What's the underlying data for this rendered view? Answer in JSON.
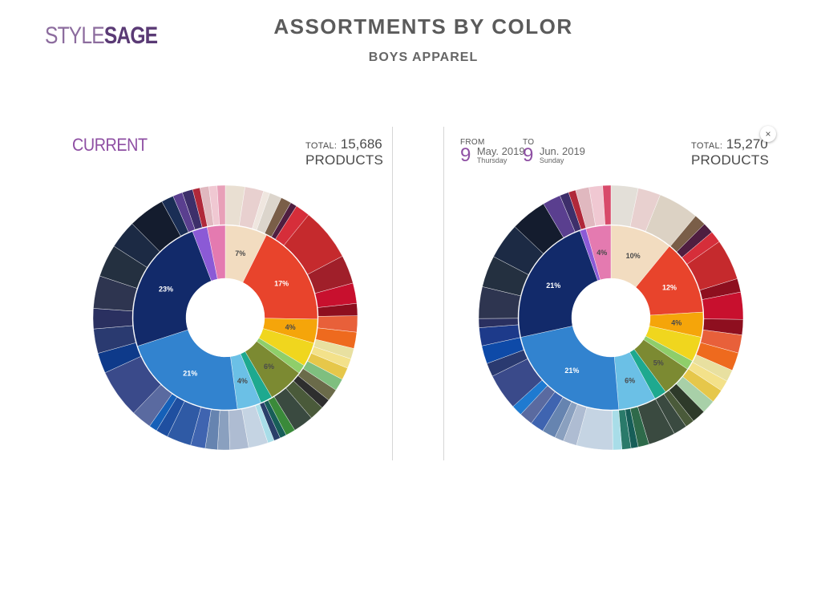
{
  "header": {
    "logo_style": "STYLE",
    "logo_sage": "SAGE",
    "title": "ASSORTMENTS BY COLOR",
    "subtitle": "BOYS APPAREL"
  },
  "left_panel": {
    "label": "CURRENT",
    "total_label": "TOTAL:",
    "total_value": "15,686",
    "total_unit": "PRODUCTS"
  },
  "right_panel": {
    "from_label": "FROM",
    "from_day": "9",
    "from_month": "May. 2019",
    "from_weekday": "Thursday",
    "to_label": "TO",
    "to_day": "9",
    "to_month": "Jun. 2019",
    "to_weekday": "Sunday",
    "total_label": "TOTAL:",
    "total_value": "15,270",
    "total_unit": "PRODUCTS",
    "close_label": "×"
  },
  "chart_data": [
    {
      "type": "sunburst",
      "title": "CURRENT",
      "total": 15686,
      "inner": [
        {
          "value": 7,
          "label": "7%",
          "color": "#f2dcc0"
        },
        {
          "value": 17,
          "label": "17%",
          "color": "#e8442c"
        },
        {
          "value": 4,
          "label": "4%",
          "color": "#f5a50a"
        },
        {
          "value": 4,
          "label": "",
          "color": "#f0d61e"
        },
        {
          "value": 1.5,
          "label": "",
          "color": "#8fce6a"
        },
        {
          "value": 6,
          "label": "6%",
          "color": "#7c8a32"
        },
        {
          "value": 2,
          "label": "",
          "color": "#1ea98f"
        },
        {
          "value": 4,
          "label": "4%",
          "color": "#6bc0e6"
        },
        {
          "value": 21,
          "label": "21%",
          "color": "#3283cf"
        },
        {
          "value": 23,
          "label": "23%",
          "color": "#122a6a"
        },
        {
          "value": 2.5,
          "label": "",
          "color": "#8b5ad6"
        },
        {
          "value": 3,
          "label": "",
          "color": "#e47ab0"
        }
      ],
      "outer": [
        {
          "value": 2.4,
          "color": "#e9dfd2"
        },
        {
          "value": 2.3,
          "color": "#e8d0cf"
        },
        {
          "value": 0.8,
          "color": "#efe6df"
        },
        {
          "value": 1.5,
          "color": "#dcd5cc"
        },
        {
          "value": 1.3,
          "color": "#7a5e48"
        },
        {
          "value": 0.8,
          "color": "#4f1e40"
        },
        {
          "value": 1.8,
          "color": "#d62e3a"
        },
        {
          "value": 6.5,
          "color": "#c52a2d"
        },
        {
          "value": 3.5,
          "color": "#a01f2a"
        },
        {
          "value": 2.5,
          "color": "#c8102e"
        },
        {
          "value": 1.5,
          "color": "#8e0f1f"
        },
        {
          "value": 2.0,
          "color": "#e8603a"
        },
        {
          "value": 2.0,
          "color": "#ee6a1e"
        },
        {
          "value": 1.3,
          "color": "#e8e0a0"
        },
        {
          "value": 1.2,
          "color": "#f3e18a"
        },
        {
          "value": 1.5,
          "color": "#e6c74a"
        },
        {
          "value": 1.5,
          "color": "#7fbf7f"
        },
        {
          "value": 1.5,
          "color": "#6b6b4a"
        },
        {
          "value": 1.2,
          "color": "#2e2e2e"
        },
        {
          "value": 1.8,
          "color": "#4a5a3a"
        },
        {
          "value": 2.5,
          "color": "#3a4a40"
        },
        {
          "value": 1.2,
          "color": "#3a8a3a"
        },
        {
          "value": 0.8,
          "color": "#175e58"
        },
        {
          "value": 0.8,
          "color": "#2a3f6a"
        },
        {
          "value": 0.8,
          "color": "#a8dde8"
        },
        {
          "value": 2.4,
          "color": "#c5d4e3"
        },
        {
          "value": 2.3,
          "color": "#aebcd2"
        },
        {
          "value": 1.5,
          "color": "#8aa0bf"
        },
        {
          "value": 1.5,
          "color": "#6684b0"
        },
        {
          "value": 1.8,
          "color": "#3f64b0"
        },
        {
          "value": 3.0,
          "color": "#2f5aa5"
        },
        {
          "value": 1.5,
          "color": "#1f4fa0"
        },
        {
          "value": 1.0,
          "color": "#1560b8"
        },
        {
          "value": 2.5,
          "color": "#5a6aa0"
        },
        {
          "value": 6.0,
          "color": "#3a4a8a"
        },
        {
          "value": 2.5,
          "color": "#0e3a8a"
        },
        {
          "value": 3.0,
          "color": "#2a3a70"
        },
        {
          "value": 2.5,
          "color": "#2a3060"
        },
        {
          "value": 4.0,
          "color": "#2e3550"
        },
        {
          "value": 4.0,
          "color": "#243040"
        },
        {
          "value": 3.5,
          "color": "#1c2a44"
        },
        {
          "value": 4.5,
          "color": "#141c2e"
        },
        {
          "value": 1.5,
          "color": "#1a2e55"
        },
        {
          "value": 1.2,
          "color": "#5a3f8f"
        },
        {
          "value": 1.3,
          "color": "#3d2f6a"
        },
        {
          "value": 0.9,
          "color": "#b0283a"
        },
        {
          "value": 1.1,
          "color": "#e0b8bf"
        },
        {
          "value": 1.0,
          "color": "#f0c8d2"
        },
        {
          "value": 1.0,
          "color": "#e8a0b8"
        }
      ]
    },
    {
      "type": "sunburst",
      "total": 15270,
      "inner": [
        {
          "value": 10,
          "label": "10%",
          "color": "#f2dcc0"
        },
        {
          "value": 12,
          "label": "12%",
          "color": "#e8442c"
        },
        {
          "value": 4,
          "label": "4%",
          "color": "#f5a50a"
        },
        {
          "value": 4,
          "label": "",
          "color": "#f0d61e"
        },
        {
          "value": 1.5,
          "label": "",
          "color": "#8fce6a"
        },
        {
          "value": 5,
          "label": "5%",
          "color": "#7c8a32"
        },
        {
          "value": 2,
          "label": "",
          "color": "#1ea98f"
        },
        {
          "value": 6,
          "label": "6%",
          "color": "#6bc0e6"
        },
        {
          "value": 21,
          "label": "21%",
          "color": "#3283cf"
        },
        {
          "value": 21,
          "label": "21%",
          "color": "#122a6a"
        },
        {
          "value": 1,
          "label": "",
          "color": "#8b5ad6"
        },
        {
          "value": 4,
          "label": "4%",
          "color": "#e47ab0"
        }
      ],
      "outer": [
        {
          "value": 3.0,
          "color": "#e3dfd8"
        },
        {
          "value": 2.5,
          "color": "#e8d0cf"
        },
        {
          "value": 4.5,
          "color": "#dcd2c4"
        },
        {
          "value": 1.3,
          "color": "#7a5e48"
        },
        {
          "value": 1.2,
          "color": "#4f1e40"
        },
        {
          "value": 1.3,
          "color": "#d62e3a"
        },
        {
          "value": 4.5,
          "color": "#c52a2d"
        },
        {
          "value": 1.5,
          "color": "#8e0f1f"
        },
        {
          "value": 3.0,
          "color": "#c8102e"
        },
        {
          "value": 1.7,
          "color": "#8e0f1f"
        },
        {
          "value": 2.0,
          "color": "#e8603a"
        },
        {
          "value": 2.0,
          "color": "#ee6a1e"
        },
        {
          "value": 1.3,
          "color": "#e8e0a0"
        },
        {
          "value": 1.2,
          "color": "#f3e18a"
        },
        {
          "value": 1.5,
          "color": "#e6c74a"
        },
        {
          "value": 1.5,
          "color": "#a8d0a8"
        },
        {
          "value": 1.5,
          "color": "#2e3a2a"
        },
        {
          "value": 1.0,
          "color": "#4a5a3a"
        },
        {
          "value": 1.5,
          "color": "#3a4a40"
        },
        {
          "value": 3.0,
          "color": "#3a4a40"
        },
        {
          "value": 1.2,
          "color": "#2e6a4a"
        },
        {
          "value": 0.8,
          "color": "#175e58"
        },
        {
          "value": 1.0,
          "color": "#2a7a6a"
        },
        {
          "value": 1.0,
          "color": "#a8dde8"
        },
        {
          "value": 4.0,
          "color": "#c5d4e3"
        },
        {
          "value": 1.5,
          "color": "#aebcd2"
        },
        {
          "value": 1.0,
          "color": "#8aa0bf"
        },
        {
          "value": 1.5,
          "color": "#6684b0"
        },
        {
          "value": 1.5,
          "color": "#3f64b0"
        },
        {
          "value": 1.5,
          "color": "#5a6aa0"
        },
        {
          "value": 1.2,
          "color": "#1f7ad0"
        },
        {
          "value": 4.0,
          "color": "#3a4a8a"
        },
        {
          "value": 1.5,
          "color": "#2a3a70"
        },
        {
          "value": 2.0,
          "color": "#0e4aa8"
        },
        {
          "value": 2.0,
          "color": "#1d3a8a"
        },
        {
          "value": 1.0,
          "color": "#2a3060"
        },
        {
          "value": 3.5,
          "color": "#2e3550"
        },
        {
          "value": 3.5,
          "color": "#243040"
        },
        {
          "value": 4.0,
          "color": "#1c2a44"
        },
        {
          "value": 4.0,
          "color": "#141c2e"
        },
        {
          "value": 2.0,
          "color": "#5a3f8f"
        },
        {
          "value": 1.0,
          "color": "#3d2f6a"
        },
        {
          "value": 0.8,
          "color": "#b0283a"
        },
        {
          "value": 1.5,
          "color": "#e0b8bf"
        },
        {
          "value": 1.5,
          "color": "#f0c8d2"
        },
        {
          "value": 0.9,
          "color": "#d84a6a"
        }
      ]
    }
  ]
}
